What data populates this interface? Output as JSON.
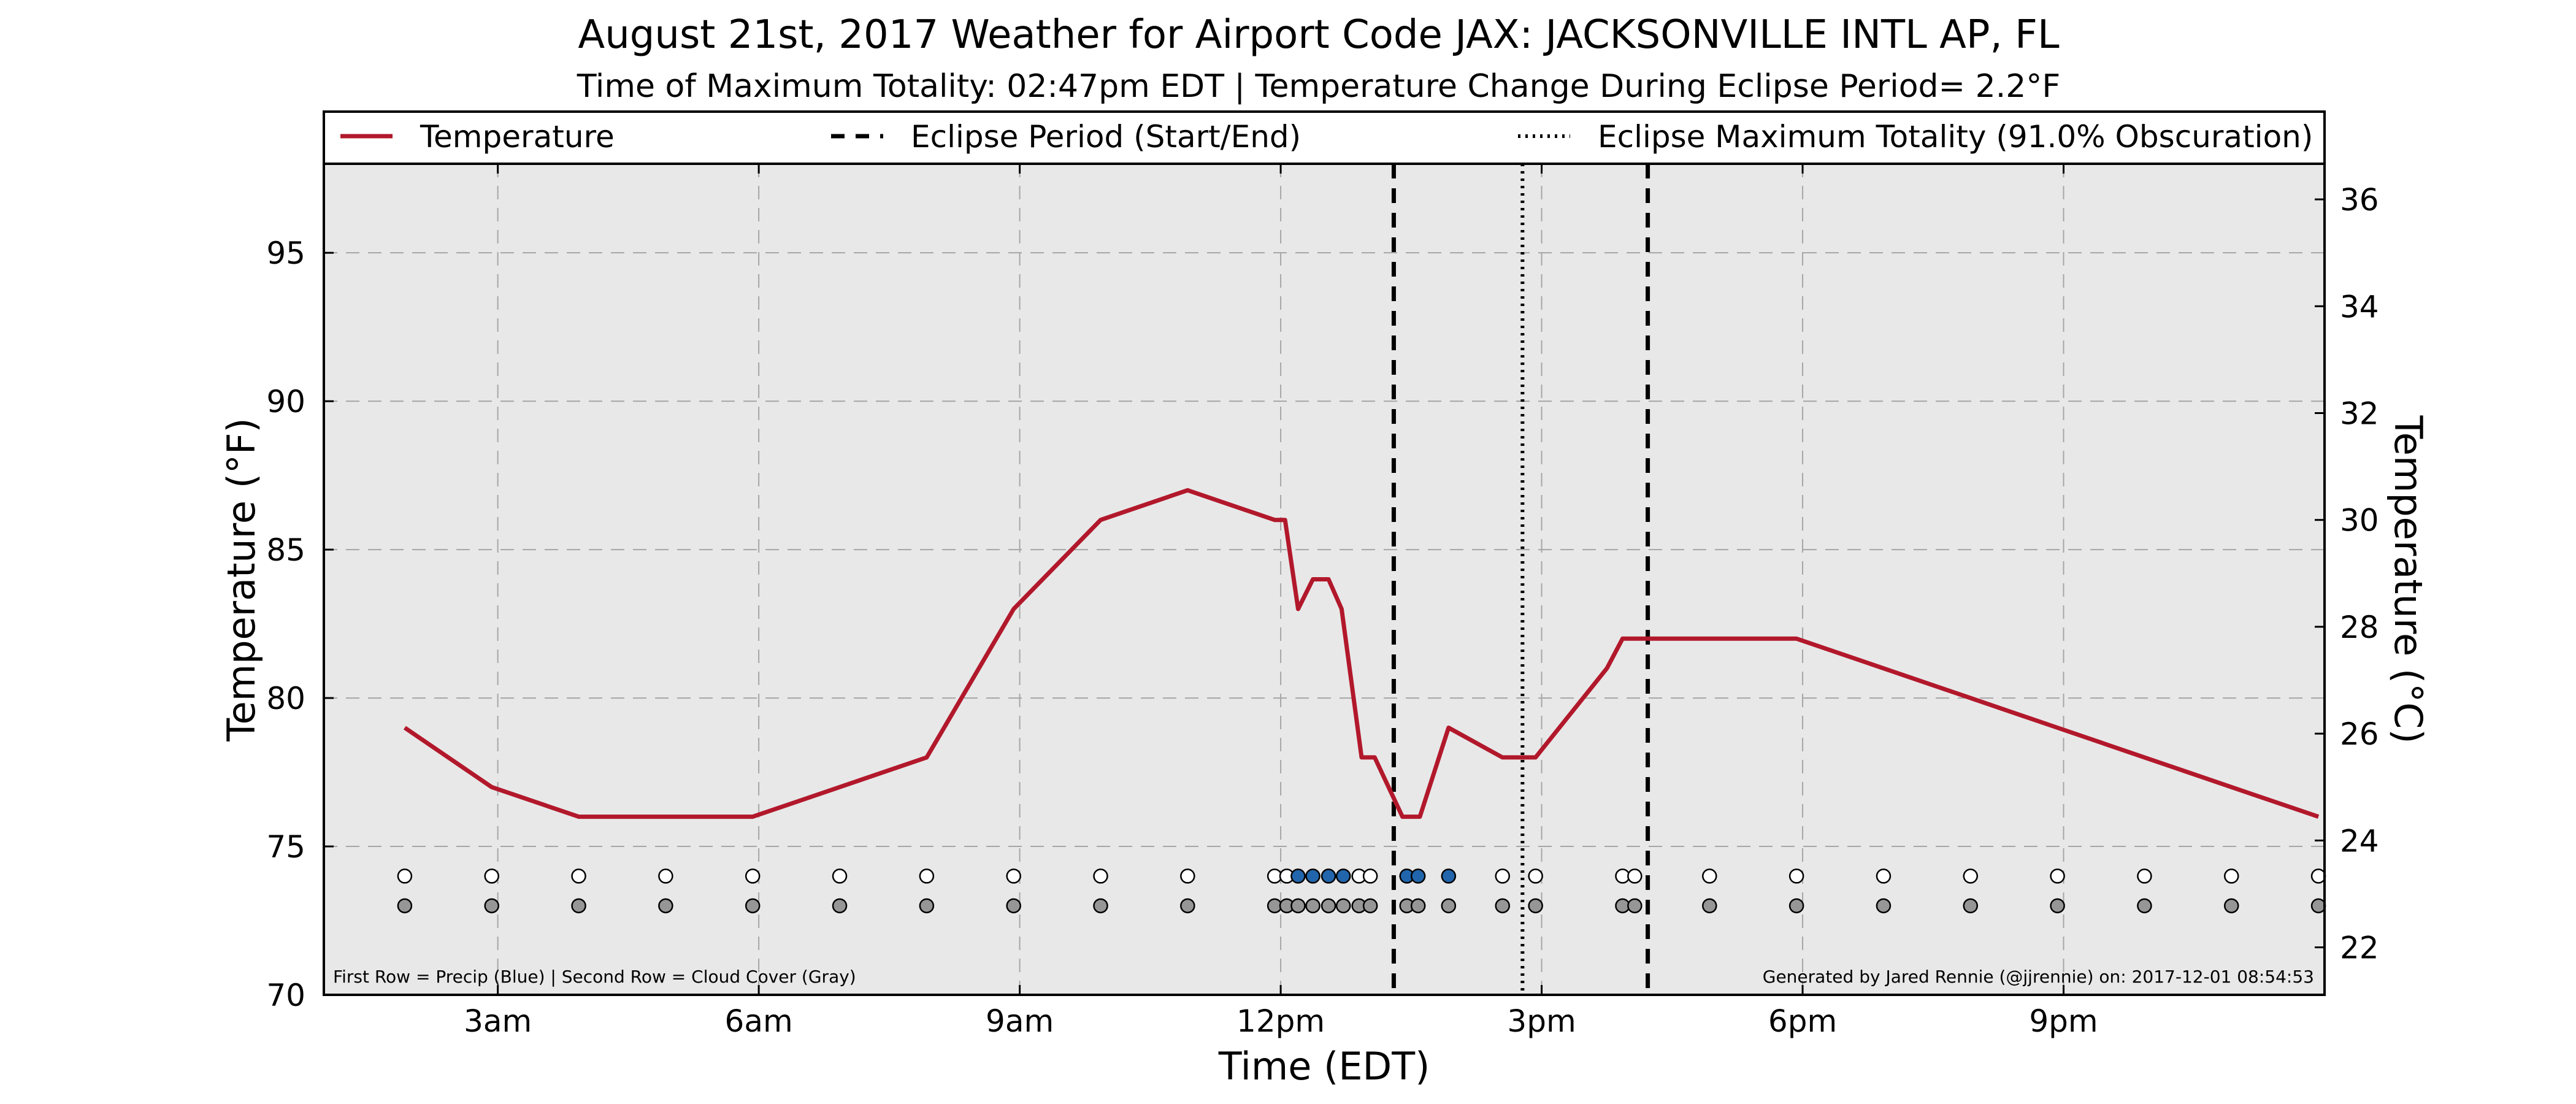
{
  "chart_data": {
    "type": "line",
    "title": "August 21st, 2017 Weather for Airport Code JAX: JACKSONVILLE INTL AP, FL",
    "subtitle": "Time of Maximum Totality: 02:47pm EDT | Temperature Change During Eclipse Period= 2.2°F",
    "xlabel": "Time (EDT)",
    "ylabel_left": "Temperature (°F)",
    "ylabel_right": "Temperature (°C)",
    "x_unit": "hours (EDT)",
    "xlim": [
      1,
      24
    ],
    "ylim": [
      70,
      98
    ],
    "xticks": [
      {
        "x": 3,
        "label": "3am"
      },
      {
        "x": 6,
        "label": "6am"
      },
      {
        "x": 9,
        "label": "9am"
      },
      {
        "x": 12,
        "label": "12pm"
      },
      {
        "x": 15,
        "label": "3pm"
      },
      {
        "x": 18,
        "label": "6pm"
      },
      {
        "x": 21,
        "label": "9pm"
      }
    ],
    "yticks_left": [
      70,
      75,
      80,
      85,
      90,
      95
    ],
    "yticks_right": [
      22,
      24,
      26,
      28,
      30,
      32,
      34,
      36
    ],
    "grid": true,
    "legend_position": "top",
    "legend": [
      {
        "label": "Temperature",
        "style": "solid",
        "color": "#b2182b"
      },
      {
        "label": "Eclipse Period (Start/End)",
        "style": "dashed",
        "color": "#000000"
      },
      {
        "label": "Eclipse Maximum Totality (91.0% Obscuration)",
        "style": "dotted",
        "color": "#000000"
      }
    ],
    "series": [
      {
        "name": "Temperature",
        "color": "#b2182b",
        "points": [
          [
            1.93,
            79
          ],
          [
            2.93,
            77
          ],
          [
            3.93,
            76
          ],
          [
            4.93,
            76
          ],
          [
            5.93,
            76
          ],
          [
            6.93,
            77
          ],
          [
            7.93,
            78
          ],
          [
            8.93,
            83
          ],
          [
            9.93,
            86
          ],
          [
            10.93,
            87
          ],
          [
            11.93,
            86
          ],
          [
            12.05,
            86
          ],
          [
            12.2,
            83
          ],
          [
            12.37,
            84
          ],
          [
            12.55,
            84
          ],
          [
            12.7,
            83
          ],
          [
            12.93,
            78
          ],
          [
            13.08,
            78
          ],
          [
            13.4,
            76
          ],
          [
            13.6,
            76
          ],
          [
            13.93,
            79
          ],
          [
            14.55,
            78
          ],
          [
            14.93,
            78
          ],
          [
            15.75,
            81
          ],
          [
            15.93,
            82
          ],
          [
            16.93,
            82
          ],
          [
            17.93,
            82
          ],
          [
            18.93,
            81
          ],
          [
            19.93,
            80
          ],
          [
            20.93,
            79
          ],
          [
            21.93,
            78
          ],
          [
            22.93,
            77
          ],
          [
            23.93,
            76
          ]
        ]
      }
    ],
    "eclipse_start": 13.3,
    "eclipse_end": 16.22,
    "eclipse_max": 14.78,
    "precip_row_y": 74,
    "cloud_row_y": 73,
    "precip_color": "#2166ac",
    "cloud_color": "#969696",
    "observations": [
      {
        "x": 1.93,
        "precip": false
      },
      {
        "x": 2.93,
        "precip": false
      },
      {
        "x": 3.93,
        "precip": false
      },
      {
        "x": 4.93,
        "precip": false
      },
      {
        "x": 5.93,
        "precip": false
      },
      {
        "x": 6.93,
        "precip": false
      },
      {
        "x": 7.93,
        "precip": false
      },
      {
        "x": 8.93,
        "precip": false
      },
      {
        "x": 9.93,
        "precip": false
      },
      {
        "x": 10.93,
        "precip": false
      },
      {
        "x": 11.93,
        "precip": false
      },
      {
        "x": 12.07,
        "precip": false
      },
      {
        "x": 12.2,
        "precip": true
      },
      {
        "x": 12.37,
        "precip": true
      },
      {
        "x": 12.55,
        "precip": true
      },
      {
        "x": 12.72,
        "precip": true
      },
      {
        "x": 12.9,
        "precip": false
      },
      {
        "x": 13.03,
        "precip": false
      },
      {
        "x": 13.45,
        "precip": true
      },
      {
        "x": 13.58,
        "precip": true
      },
      {
        "x": 13.93,
        "precip": true
      },
      {
        "x": 14.55,
        "precip": false
      },
      {
        "x": 14.93,
        "precip": false
      },
      {
        "x": 15.93,
        "precip": false
      },
      {
        "x": 16.07,
        "precip": false
      },
      {
        "x": 16.93,
        "precip": false
      },
      {
        "x": 17.93,
        "precip": false
      },
      {
        "x": 18.93,
        "precip": false
      },
      {
        "x": 19.93,
        "precip": false
      },
      {
        "x": 20.93,
        "precip": false
      },
      {
        "x": 21.93,
        "precip": false
      },
      {
        "x": 22.93,
        "precip": false
      },
      {
        "x": 23.93,
        "precip": false
      }
    ],
    "footnote_left": "First Row = Precip (Blue) | Second Row = Cloud Cover (Gray)",
    "footnote_right": "Generated by Jared Rennie (@jjrennie) on: 2017-12-01 08:54:53"
  }
}
